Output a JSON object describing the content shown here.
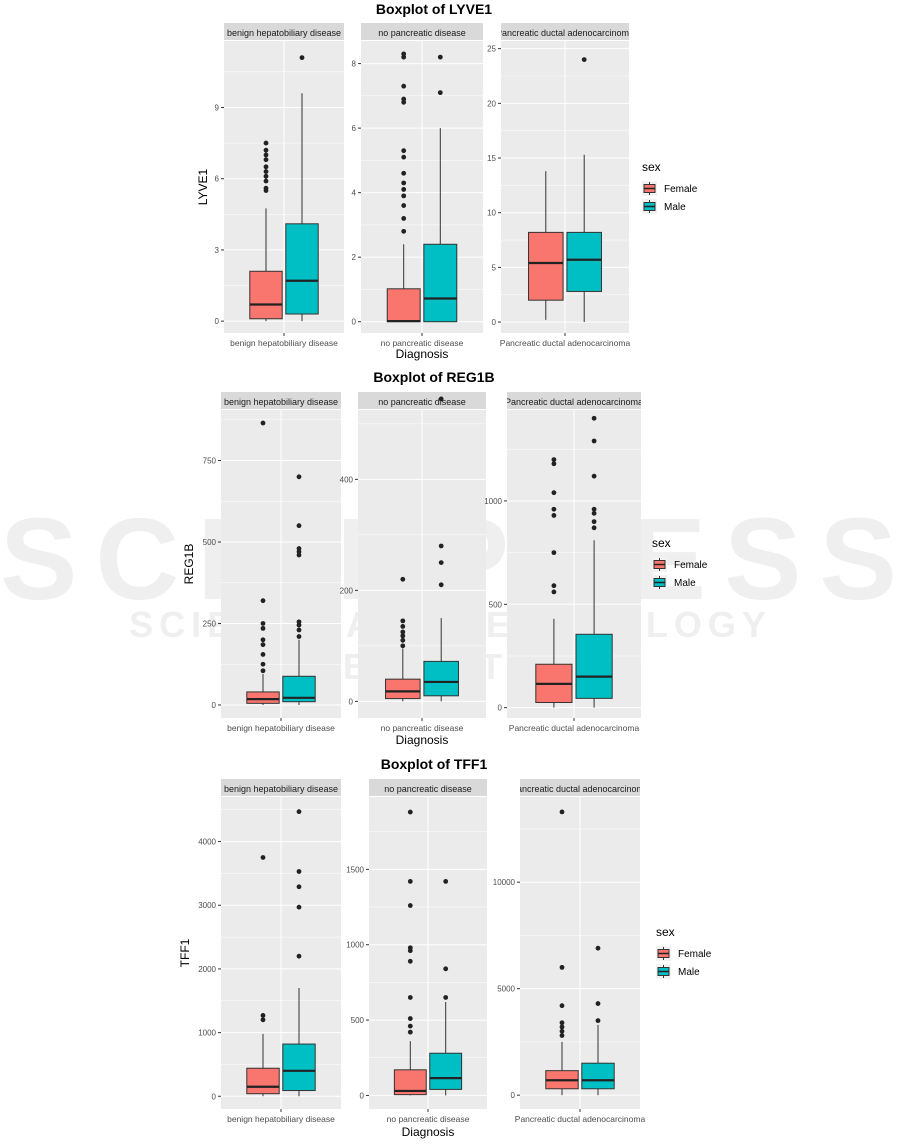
{
  "watermark": {
    "main": "SCITEPRESS",
    "sub": "SCIENCE AND TECHNOLOGY PUBLICATIONS"
  },
  "legend": {
    "title": "sex",
    "items": [
      "Female",
      "Male"
    ]
  },
  "colors": {
    "Female": "#F8766D",
    "Male": "#00BFC4",
    "panel_bg": "#EBEBEB",
    "strip_bg": "#D9D9D9",
    "grid": "#FFFFFF"
  },
  "chart_data": [
    {
      "type": "box",
      "title": "Boxplot of LYVE1",
      "xlabel": "Diagnosis",
      "ylabel": "LYVE1",
      "facets": [
        {
          "strip": "benign hepatobiliary disease",
          "xtick": "benign hepatobiliary disease",
          "ylim": [
            -0.5,
            11.8
          ],
          "yticks": [
            0,
            3,
            6,
            9
          ],
          "boxes": [
            {
              "sex": "Female",
              "lower": 0,
              "q1": 0.1,
              "median": 0.7,
              "q3": 2.1,
              "upper": 4.75,
              "outliers": [
                5.5,
                5.6,
                5.9,
                6.1,
                6.3,
                6.5,
                6.8,
                7.0,
                7.2,
                7.5
              ]
            },
            {
              "sex": "Male",
              "lower": 0,
              "q1": 0.3,
              "median": 1.7,
              "q3": 4.1,
              "upper": 9.6,
              "outliers": [
                11.1
              ]
            }
          ]
        },
        {
          "strip": "no pancreatic disease",
          "xtick": "no pancreatic disease",
          "ylim": [
            -0.35,
            8.7
          ],
          "yticks": [
            0,
            2,
            4,
            6,
            8
          ],
          "boxes": [
            {
              "sex": "Female",
              "lower": 0,
              "q1": 0,
              "median": 0.02,
              "q3": 1.02,
              "upper": 2.4,
              "outliers": [
                2.8,
                3.2,
                3.6,
                3.9,
                4.1,
                4.3,
                4.6,
                5.1,
                5.3,
                6.8,
                6.9,
                7.3,
                8.2,
                8.3
              ]
            },
            {
              "sex": "Male",
              "lower": 0,
              "q1": 0,
              "median": 0.72,
              "q3": 2.4,
              "upper": 6.0,
              "outliers": [
                7.1,
                8.2
              ]
            }
          ]
        },
        {
          "strip": "Pancreatic ductal adenocarcinoma",
          "xtick": "Pancreatic ductal adenocarcinoma",
          "ylim": [
            -1.0,
            25.7
          ],
          "yticks": [
            0,
            5,
            10,
            15,
            20,
            25
          ],
          "boxes": [
            {
              "sex": "Female",
              "lower": 0.2,
              "q1": 2.0,
              "median": 5.4,
              "q3": 8.2,
              "upper": 13.8,
              "outliers": []
            },
            {
              "sex": "Male",
              "lower": 0,
              "q1": 2.8,
              "median": 5.7,
              "q3": 8.2,
              "upper": 15.3,
              "outliers": [
                24.0
              ]
            }
          ]
        }
      ]
    },
    {
      "type": "box",
      "title": "Boxplot of REG1B",
      "xlabel": "Diagnosis",
      "ylabel": "REG1B",
      "facets": [
        {
          "strip": "benign hepatobiliary disease",
          "xtick": "benign hepatobiliary disease",
          "ylim": [
            -40,
            905
          ],
          "yticks": [
            0,
            250,
            500,
            750
          ],
          "boxes": [
            {
              "sex": "Female",
              "lower": 0,
              "q1": 5,
              "median": 18,
              "q3": 40,
              "upper": 95,
              "outliers": [
                105,
                125,
                155,
                185,
                200,
                235,
                250,
                320,
                865
              ]
            },
            {
              "sex": "Male",
              "lower": 0,
              "q1": 10,
              "median": 22,
              "q3": 88,
              "upper": 200,
              "outliers": [
                210,
                230,
                245,
                255,
                460,
                470,
                480,
                550,
                700
              ]
            }
          ]
        },
        {
          "strip": "no pancreatic disease",
          "xtick": "no pancreatic disease",
          "ylim": [
            -30,
            525
          ],
          "yticks": [
            0,
            200,
            400
          ],
          "boxes": [
            {
              "sex": "Female",
              "lower": 0,
              "q1": 5,
              "median": 18,
              "q3": 40,
              "upper": 95,
              "outliers": [
                100,
                110,
                118,
                125,
                135,
                145,
                220
              ]
            },
            {
              "sex": "Male",
              "lower": 0,
              "q1": 10,
              "median": 35,
              "q3": 72,
              "upper": 150,
              "outliers": [
                210,
                250,
                280,
                545
              ]
            }
          ]
        },
        {
          "strip": "Pancreatic ductal adenocarcinoma",
          "xtick": "Pancreatic ductal adenocarcinoma",
          "ylim": [
            -50,
            1440
          ],
          "yticks": [
            0,
            500,
            1000
          ],
          "boxes": [
            {
              "sex": "Female",
              "lower": 0,
              "q1": 25,
              "median": 115,
              "q3": 210,
              "upper": 430,
              "outliers": [
                560,
                590,
                750,
                930,
                960,
                1040,
                1180,
                1200
              ]
            },
            {
              "sex": "Male",
              "lower": 0,
              "q1": 45,
              "median": 150,
              "q3": 355,
              "upper": 810,
              "outliers": [
                870,
                900,
                940,
                960,
                1120,
                1290,
                1400
              ]
            }
          ]
        }
      ]
    },
    {
      "type": "box",
      "title": "Boxplot of TFF1",
      "xlabel": "Diagnosis",
      "ylabel": "TFF1",
      "facets": [
        {
          "strip": "benign hepatobiliary disease",
          "xtick": "benign hepatobiliary disease",
          "ylim": [
            -200,
            4700
          ],
          "yticks": [
            0,
            1000,
            2000,
            3000,
            4000
          ],
          "boxes": [
            {
              "sex": "Female",
              "lower": 0,
              "q1": 40,
              "median": 150,
              "q3": 440,
              "upper": 980,
              "outliers": [
                1200,
                1270,
                3750
              ]
            },
            {
              "sex": "Male",
              "lower": 0,
              "q1": 90,
              "median": 400,
              "q3": 820,
              "upper": 1700,
              "outliers": [
                2200,
                2970,
                3290,
                3530,
                4470
              ]
            }
          ]
        },
        {
          "strip": "no pancreatic disease",
          "xtick": "no pancreatic disease",
          "ylim": [
            -90,
            1980
          ],
          "yticks": [
            0,
            500,
            1000,
            1500
          ],
          "boxes": [
            {
              "sex": "Female",
              "lower": 0,
              "q1": 5,
              "median": 30,
              "q3": 170,
              "upper": 360,
              "outliers": [
                420,
                460,
                510,
                650,
                890,
                960,
                980,
                1260,
                1420,
                1880
              ]
            },
            {
              "sex": "Male",
              "lower": 0,
              "q1": 40,
              "median": 115,
              "q3": 280,
              "upper": 620,
              "outliers": [
                650,
                840,
                1420
              ]
            }
          ]
        },
        {
          "strip": "Pancreatic ductal adenocarcinoma",
          "xtick": "Pancreatic ductal adenocarcinoma",
          "ylim": [
            -650,
            14000
          ],
          "yticks": [
            0,
            5000,
            10000
          ],
          "boxes": [
            {
              "sex": "Female",
              "lower": 0,
              "q1": 300,
              "median": 700,
              "q3": 1150,
              "upper": 2500,
              "outliers": [
                2800,
                3000,
                3200,
                3400,
                4200,
                6000,
                13300
              ]
            },
            {
              "sex": "Male",
              "lower": 0,
              "q1": 300,
              "median": 700,
              "q3": 1500,
              "upper": 3300,
              "outliers": [
                3500,
                4300,
                6900
              ]
            }
          ]
        }
      ]
    }
  ]
}
